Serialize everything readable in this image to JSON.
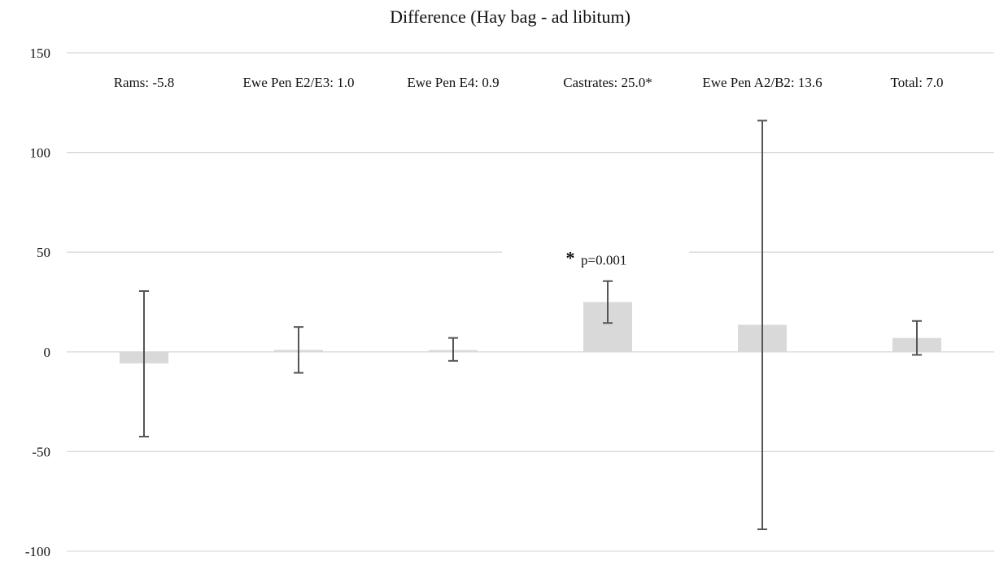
{
  "chart_data": {
    "type": "bar",
    "title": "Difference (Hay bag - ad libitum)",
    "xlabel": "",
    "ylabel": "",
    "ylim": [
      -100,
      150
    ],
    "yticks": [
      -100,
      -50,
      0,
      50,
      100,
      150
    ],
    "ytick_labels": [
      "-100",
      "-50",
      "0",
      "50",
      "100",
      "150"
    ],
    "grid": true,
    "categories": [
      "Rams: -5.8",
      "Ewe Pen E2/E3: 1.0",
      "Ewe Pen E4: 0.9",
      "Castrates: 25.0*",
      "Ewe Pen A2/B2: 13.6",
      "Total: 7.0"
    ],
    "values": [
      -5.8,
      1.0,
      0.9,
      25.0,
      13.6,
      7.0
    ],
    "error_low": [
      -42.5,
      -10.5,
      -4.5,
      14.5,
      -89.0,
      -1.5
    ],
    "error_high": [
      30.5,
      12.5,
      7.0,
      35.5,
      116.0,
      15.5
    ],
    "annotation": {
      "category_index": 3,
      "star": "*",
      "text": "p=0.001",
      "y": 45
    },
    "colors": {
      "bar": "#d9d9d9",
      "error_bar": "#555555",
      "grid": "#d9d9d9"
    }
  }
}
